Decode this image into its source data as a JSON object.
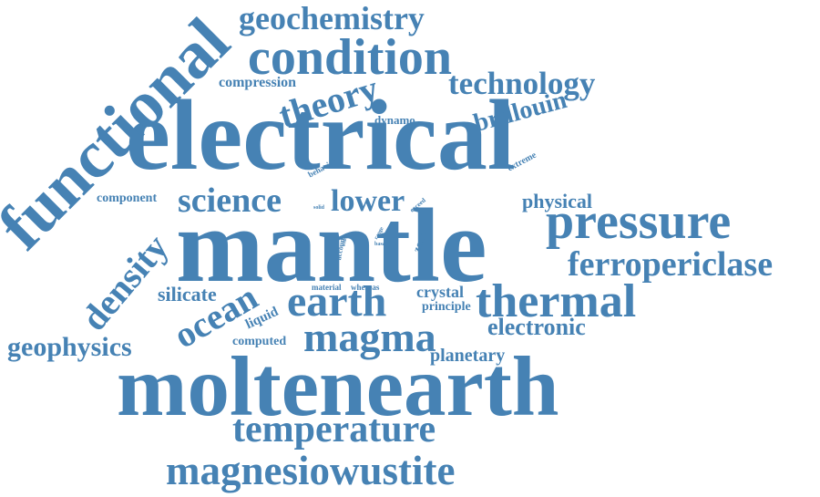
{
  "word_color": "#4682b4",
  "background": "#ffffff",
  "words": {
    "electrical": "electrical",
    "mantle": "mantle",
    "moltenearth": "moltenearth",
    "functional": "functional",
    "condition": "condition",
    "pressure": "pressure",
    "thermal": "thermal",
    "magnesiowustite": "magnesiowustite",
    "temperature": "temperature",
    "ferropericlase": "ferropericlase",
    "magma": "magma",
    "earth": "earth",
    "geochemistry": "geochemistry",
    "technology": "technology",
    "density": "density",
    "theory": "theory",
    "ocean": "ocean",
    "science": "science",
    "lower": "lower",
    "geophysics": "geophysics",
    "electronic": "electronic",
    "brillouin": "brillouin",
    "silicate": "silicate",
    "physical": "physical",
    "planetary": "planetary",
    "crystal": "crystal",
    "compression": "compression",
    "component": "component",
    "liquid": "liquid",
    "computed": "computed",
    "principle": "principle",
    "dynamo": "dynamo",
    "zone": "zone",
    "extreme": "extreme",
    "behavior": "behavior",
    "material": "material",
    "whereas": "whereas",
    "exceed": "exceed",
    "account": "account",
    "solid": "solid",
    "range": "range",
    "basal": "basal",
    "wider": "wider"
  }
}
